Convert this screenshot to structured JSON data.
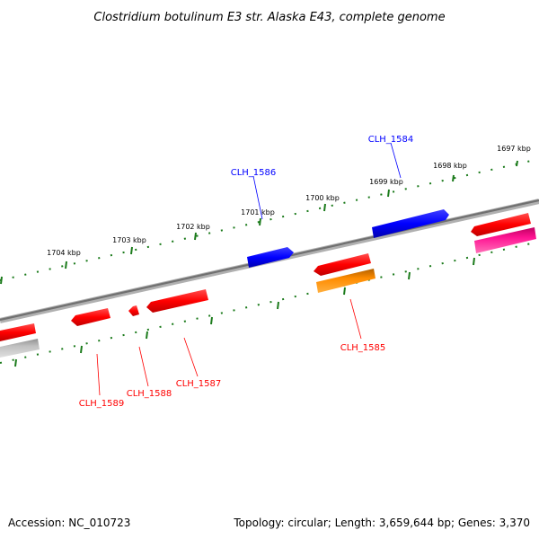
{
  "title": "Clostridium botulinum E3 str. Alaska E43, complete genome",
  "footer": {
    "accession": "Accession: NC_010723",
    "summary": "Topology: circular; Length: 3,659,644 bp; Genes: 3,370"
  },
  "ticks": [
    "1697 kbp",
    "1698 kbp",
    "1699 kbp",
    "1700 kbp",
    "1701 kbp",
    "1702 kbp",
    "1703 kbp",
    "1704 kbp"
  ],
  "genes": [
    {
      "id": "CLH_1584",
      "strand": "forward",
      "color": "#0000ff"
    },
    {
      "id": "CLH_1586",
      "strand": "forward",
      "color": "#0000ff"
    },
    {
      "id": "CLH_1585",
      "strand": "reverse",
      "color": "#ff0000"
    },
    {
      "id": "CLH_1587",
      "strand": "reverse",
      "color": "#ff0000"
    },
    {
      "id": "CLH_1588",
      "strand": "reverse",
      "color": "#ff0000"
    },
    {
      "id": "CLH_1589",
      "strand": "reverse",
      "color": "#ff0000"
    }
  ],
  "colors": {
    "backbone": "#808080",
    "tick": "#1a7a1a",
    "forward_gene": "#0000ff",
    "reverse_gene": "#ff0000",
    "orange_gene": "#ff8c00",
    "magenta_gene": "#ff1493",
    "grey_gene": "#c0c0c0"
  }
}
